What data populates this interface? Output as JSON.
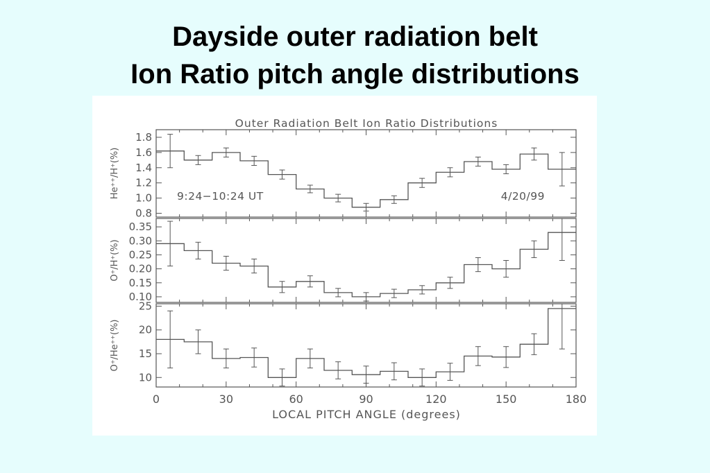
{
  "slide": {
    "title_line1": "Dayside outer radiation belt",
    "title_line2": "Ion Ratio pitch angle distributions"
  },
  "chart_data": {
    "type": "line",
    "title": "Outer Radiation Belt Ion Ratio Distributions",
    "xlabel": "LOCAL PITCH ANGLE (degrees)",
    "xlim": [
      0,
      180
    ],
    "xticks": [
      "0",
      "30",
      "60",
      "90",
      "120",
      "150",
      "180"
    ],
    "bin_edges": [
      0,
      12,
      24,
      36,
      48,
      60,
      72,
      84,
      96,
      108,
      120,
      132,
      144,
      156,
      168,
      180
    ],
    "panels": [
      {
        "name": "he_h",
        "ylabel_parts": [
          "He",
          "++",
          "/H",
          "+",
          "(%)"
        ],
        "ylim": [
          0.75,
          1.9
        ],
        "yticks": [
          "0.8",
          "1.0",
          "1.2",
          "1.4",
          "1.6",
          "1.8"
        ],
        "tick_values": [
          0.8,
          1.0,
          1.2,
          1.4,
          1.6,
          1.8
        ],
        "annotations": {
          "time_range": "9:24−10:24 UT",
          "date": "4/20/99"
        },
        "values": [
          1.62,
          1.5,
          1.6,
          1.49,
          1.31,
          1.12,
          1.0,
          0.88,
          0.98,
          1.2,
          1.34,
          1.48,
          1.38,
          1.58,
          1.38
        ],
        "errors": [
          0.22,
          0.06,
          0.06,
          0.06,
          0.06,
          0.05,
          0.05,
          0.05,
          0.05,
          0.06,
          0.06,
          0.06,
          0.06,
          0.08,
          0.22
        ]
      },
      {
        "name": "o_h",
        "ylabel_parts": [
          "O",
          "+",
          "/H",
          "+",
          "(%)"
        ],
        "ylim": [
          0.08,
          0.38
        ],
        "yticks": [
          "0.10",
          "0.15",
          "0.20",
          "0.25",
          "0.30",
          "0.35"
        ],
        "tick_values": [
          0.1,
          0.15,
          0.2,
          0.25,
          0.3,
          0.35
        ],
        "values": [
          0.29,
          0.265,
          0.22,
          0.21,
          0.135,
          0.155,
          0.115,
          0.1,
          0.112,
          0.125,
          0.15,
          0.215,
          0.2,
          0.27,
          0.33
        ],
        "errors": [
          0.08,
          0.03,
          0.025,
          0.025,
          0.02,
          0.02,
          0.015,
          0.015,
          0.015,
          0.015,
          0.02,
          0.025,
          0.03,
          0.03,
          0.1
        ]
      },
      {
        "name": "o_he",
        "ylabel_parts": [
          "O",
          "+",
          "/He",
          "++",
          "(%)"
        ],
        "ylim": [
          8,
          25.5
        ],
        "yticks": [
          "10",
          "15",
          "20",
          "25"
        ],
        "tick_values": [
          10,
          15,
          20,
          25
        ],
        "values": [
          18,
          17.5,
          14,
          14.2,
          10,
          14,
          11.5,
          10.6,
          11.3,
          10,
          11.2,
          14.5,
          14.3,
          17,
          24.5
        ],
        "errors": [
          6,
          2.5,
          2,
          2,
          1.8,
          2,
          1.8,
          1.8,
          1.8,
          1.8,
          1.8,
          2,
          2.2,
          2.2,
          8.5
        ]
      }
    ],
    "colors": {
      "line": "#555555",
      "frame": "#555555"
    }
  }
}
